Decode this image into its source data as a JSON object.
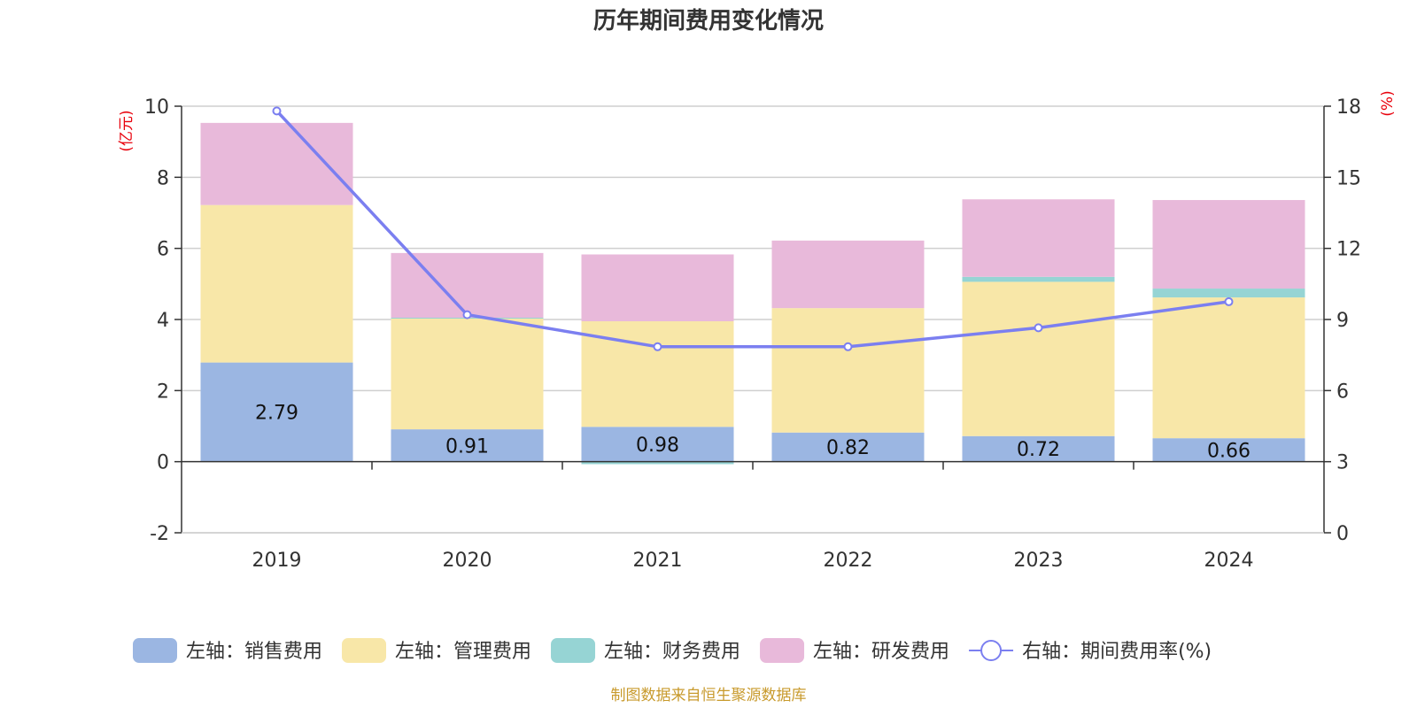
{
  "chart_data": {
    "type": "bar",
    "stacked": true,
    "title": "历年期间费用变化情况",
    "categories": [
      "2019",
      "2020",
      "2021",
      "2022",
      "2023",
      "2024"
    ],
    "left_axis": {
      "unit": "(亿元)",
      "min": -2,
      "max": 10,
      "ticks": [
        -2,
        0,
        2,
        4,
        6,
        8,
        10
      ]
    },
    "right_axis": {
      "unit": "(%)",
      "min": 0,
      "max": 18,
      "ticks": [
        0,
        3,
        6,
        9,
        12,
        15,
        18
      ]
    },
    "series": [
      {
        "name": "左轴：销售费用",
        "axis": "left",
        "kind": "bar",
        "color": "#9bb6e2",
        "values": [
          2.79,
          0.91,
          0.98,
          0.82,
          0.72,
          0.66
        ],
        "labels": [
          "2.79",
          "0.91",
          "0.98",
          "0.82",
          "0.72",
          "0.66"
        ]
      },
      {
        "name": "左轴：管理费用",
        "axis": "left",
        "kind": "bar",
        "color": "#f8e7a8",
        "values": [
          4.43,
          3.13,
          2.97,
          3.5,
          4.34,
          3.96
        ]
      },
      {
        "name": "左轴：财务费用",
        "axis": "left",
        "kind": "bar",
        "color": "#96d4d4",
        "values": [
          0.0,
          0.01,
          -0.07,
          0.0,
          0.14,
          0.25
        ]
      },
      {
        "name": "左轴：研发费用",
        "axis": "left",
        "kind": "bar",
        "color": "#e8b9da",
        "values": [
          2.31,
          1.82,
          1.88,
          1.9,
          2.18,
          2.49
        ]
      },
      {
        "name": "右轴：期间费用率(%)",
        "axis": "right",
        "kind": "line",
        "color": "#7b7ff0",
        "values": [
          17.8,
          9.2,
          7.85,
          7.85,
          8.65,
          9.75
        ]
      }
    ]
  },
  "footer": {
    "source": "制图数据来自恒生聚源数据库"
  }
}
